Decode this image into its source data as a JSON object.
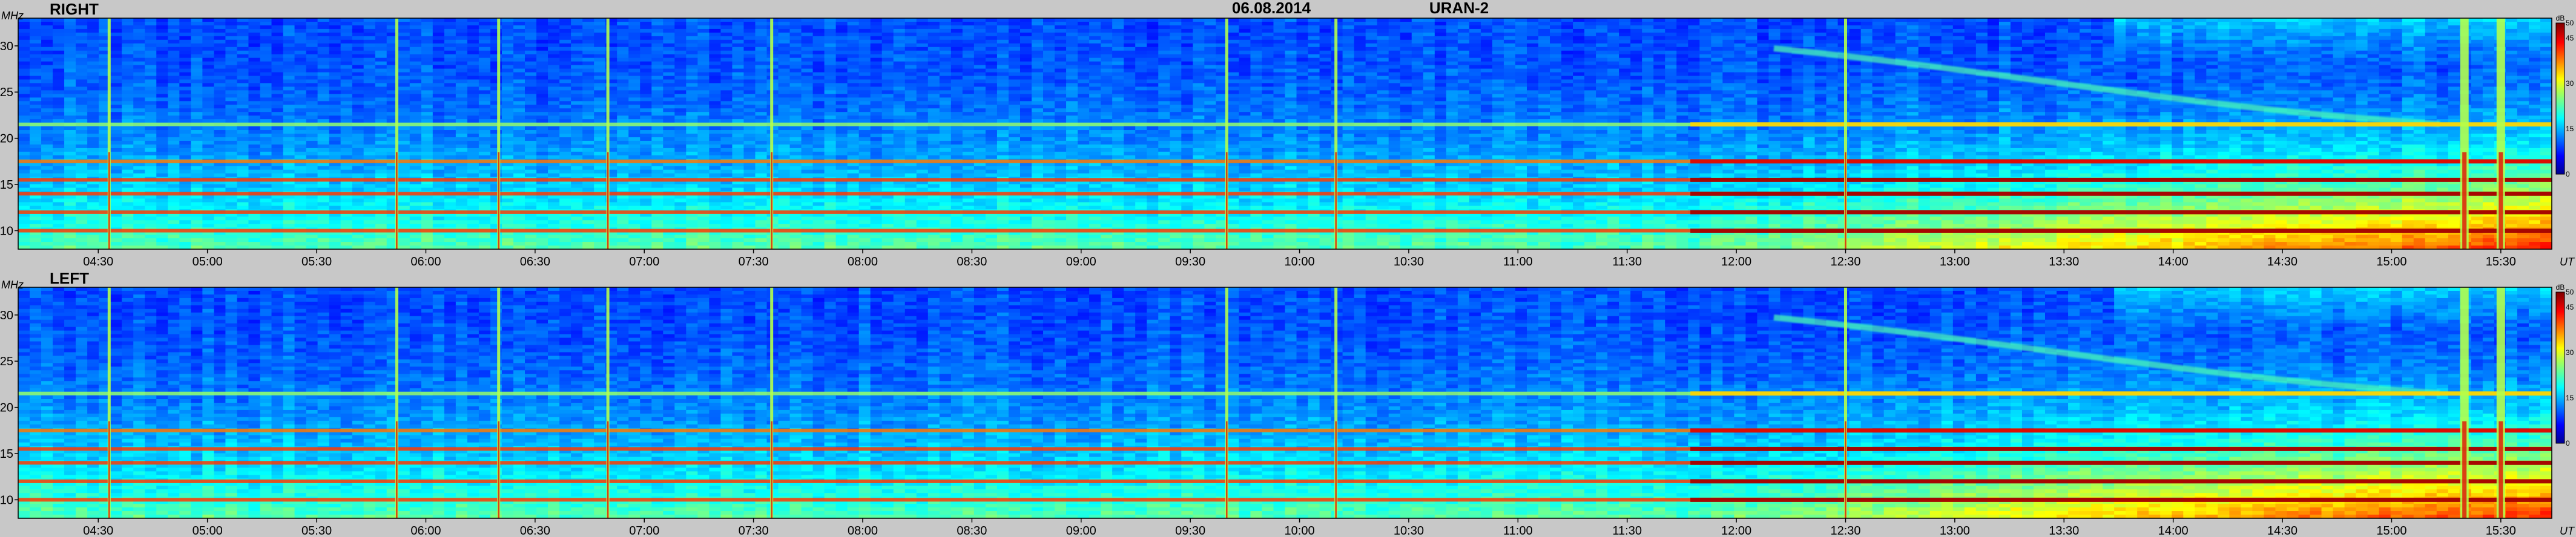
{
  "header": {
    "date": "06.08.2014",
    "instrument": "URAN-2"
  },
  "chart_data": [
    {
      "type": "heatmap",
      "panel_label": "RIGHT",
      "ylabel": "MHz",
      "xlabel": "UT",
      "ylim": [
        8,
        33
      ],
      "yticks": [
        10,
        15,
        20,
        25,
        30
      ],
      "xlim": [
        "04:08",
        "15:44"
      ],
      "xticks": [
        "04:30",
        "05:00",
        "05:30",
        "06:00",
        "06:30",
        "07:00",
        "07:30",
        "08:00",
        "08:30",
        "09:00",
        "09:30",
        "10:00",
        "10:30",
        "11:00",
        "11:30",
        "12:00",
        "12:30",
        "13:00",
        "13:30",
        "14:00",
        "14:30",
        "15:00",
        "15:30"
      ],
      "colorbar": {
        "unit": "dB",
        "range": [
          0,
          50
        ],
        "ticks": [
          0,
          15,
          30,
          45,
          50
        ]
      },
      "horizontal_bands_mhz": [
        10,
        12,
        14,
        15.5,
        17.5,
        21.5
      ],
      "vertical_bursts_ut": [
        "04:33",
        "05:52",
        "06:20",
        "06:50",
        "07:35",
        "09:40",
        "10:10",
        "12:30",
        "15:20",
        "15:30"
      ],
      "background_level": "low at high frequencies, rising toward low frequencies; strong broadband increase after 12:00"
    },
    {
      "type": "heatmap",
      "panel_label": "LEFT",
      "ylabel": "MHz",
      "xlabel": "UT",
      "ylim": [
        8,
        33
      ],
      "yticks": [
        10,
        15,
        20,
        25,
        30
      ],
      "xlim": [
        "04:08",
        "15:44"
      ],
      "xticks": [
        "04:30",
        "05:00",
        "05:30",
        "06:00",
        "06:30",
        "07:00",
        "07:30",
        "08:00",
        "08:30",
        "09:00",
        "09:30",
        "10:00",
        "10:30",
        "11:00",
        "11:30",
        "12:00",
        "12:30",
        "13:00",
        "13:30",
        "14:00",
        "14:30",
        "15:00",
        "15:30"
      ],
      "colorbar": {
        "unit": "dB",
        "range": [
          0,
          50
        ],
        "ticks": [
          0,
          15,
          30,
          45,
          50
        ]
      },
      "horizontal_bands_mhz": [
        10,
        12,
        14,
        15.5,
        17.5,
        21.5
      ],
      "vertical_bursts_ut": [
        "04:33",
        "05:52",
        "06:20",
        "06:50",
        "07:35",
        "09:40",
        "10:10",
        "12:30",
        "15:20",
        "15:30"
      ],
      "background_level": "low at high frequencies, rising toward low frequencies; strong broadband increase after 12:00"
    }
  ]
}
